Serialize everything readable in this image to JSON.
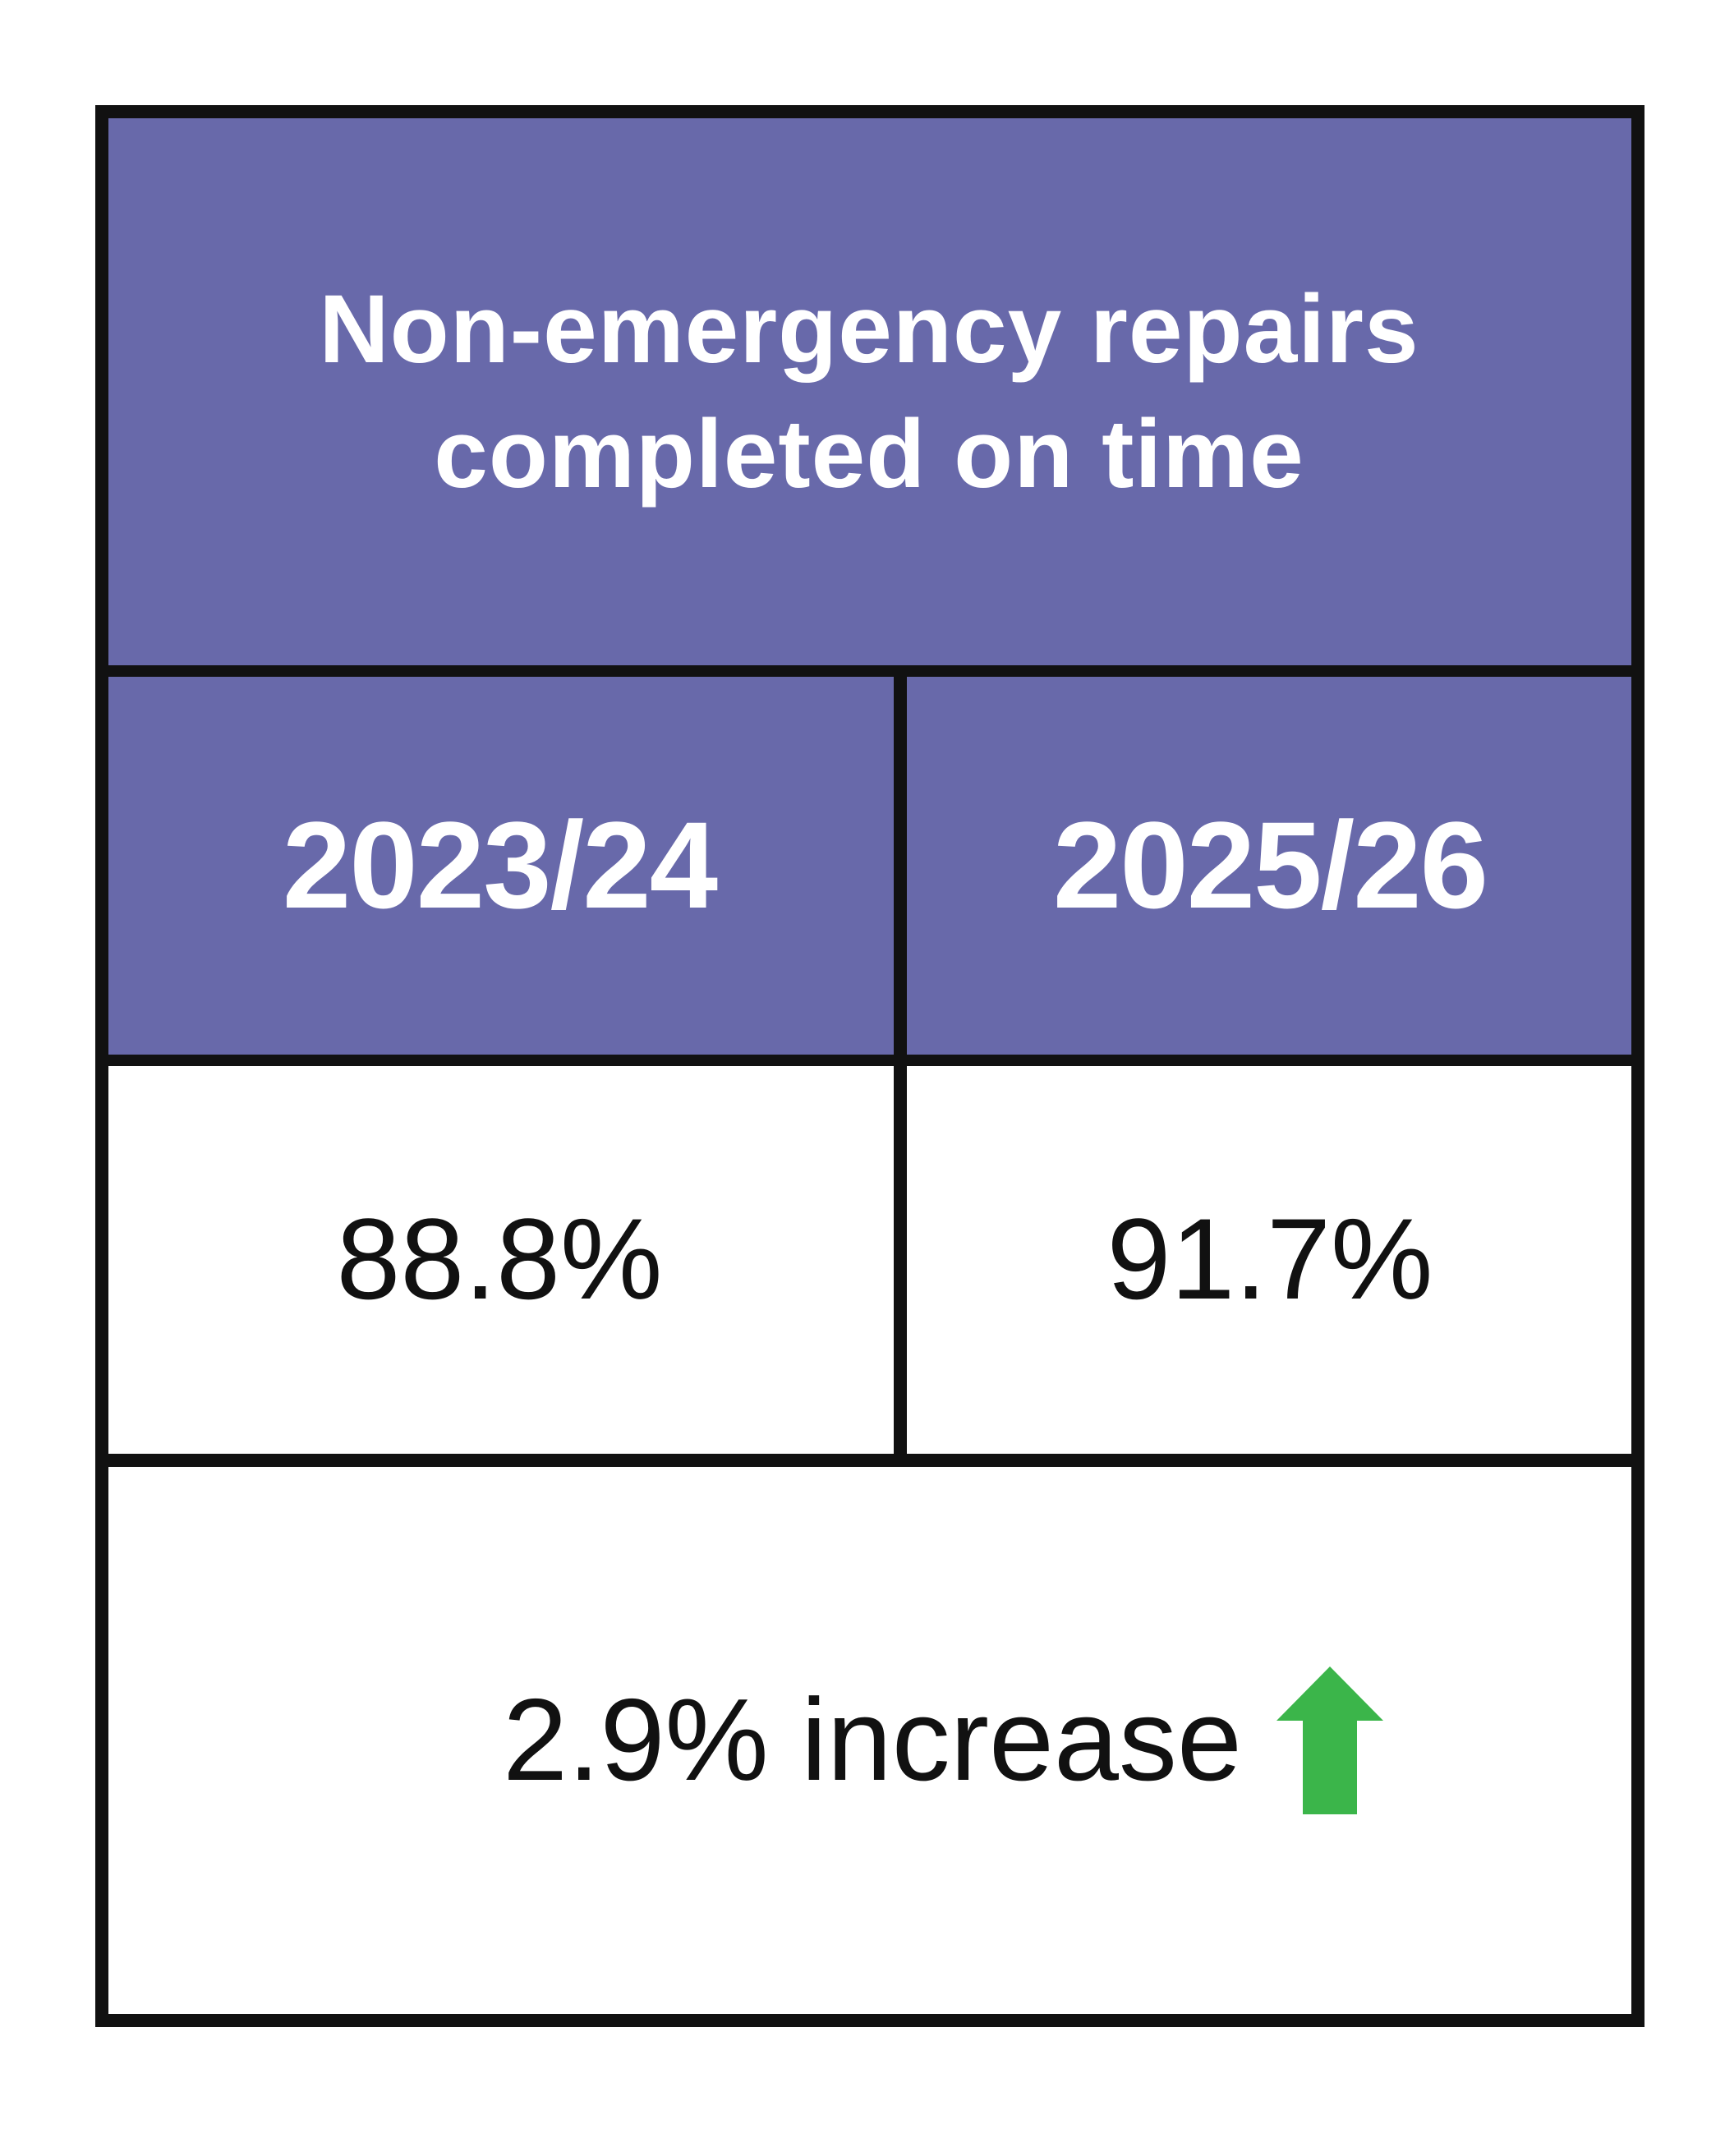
{
  "table": {
    "title": "Non-emergency repairs completed on time",
    "columns": [
      "2023/24",
      "2025/26"
    ],
    "values": [
      "88.8%",
      "91.7%"
    ],
    "change_label": "2.9% increase",
    "change_icon": "arrow-up-icon"
  },
  "colors": {
    "header_fill": "#6869aa",
    "arrow": "#3bb54a",
    "border": "#111111"
  },
  "chart_data": {
    "type": "table",
    "title": "Non-emergency repairs completed on time",
    "categories": [
      "2023/24",
      "2025/26"
    ],
    "values": [
      88.8,
      91.7
    ],
    "unit": "%",
    "annotations": [
      "2.9% increase"
    ]
  }
}
